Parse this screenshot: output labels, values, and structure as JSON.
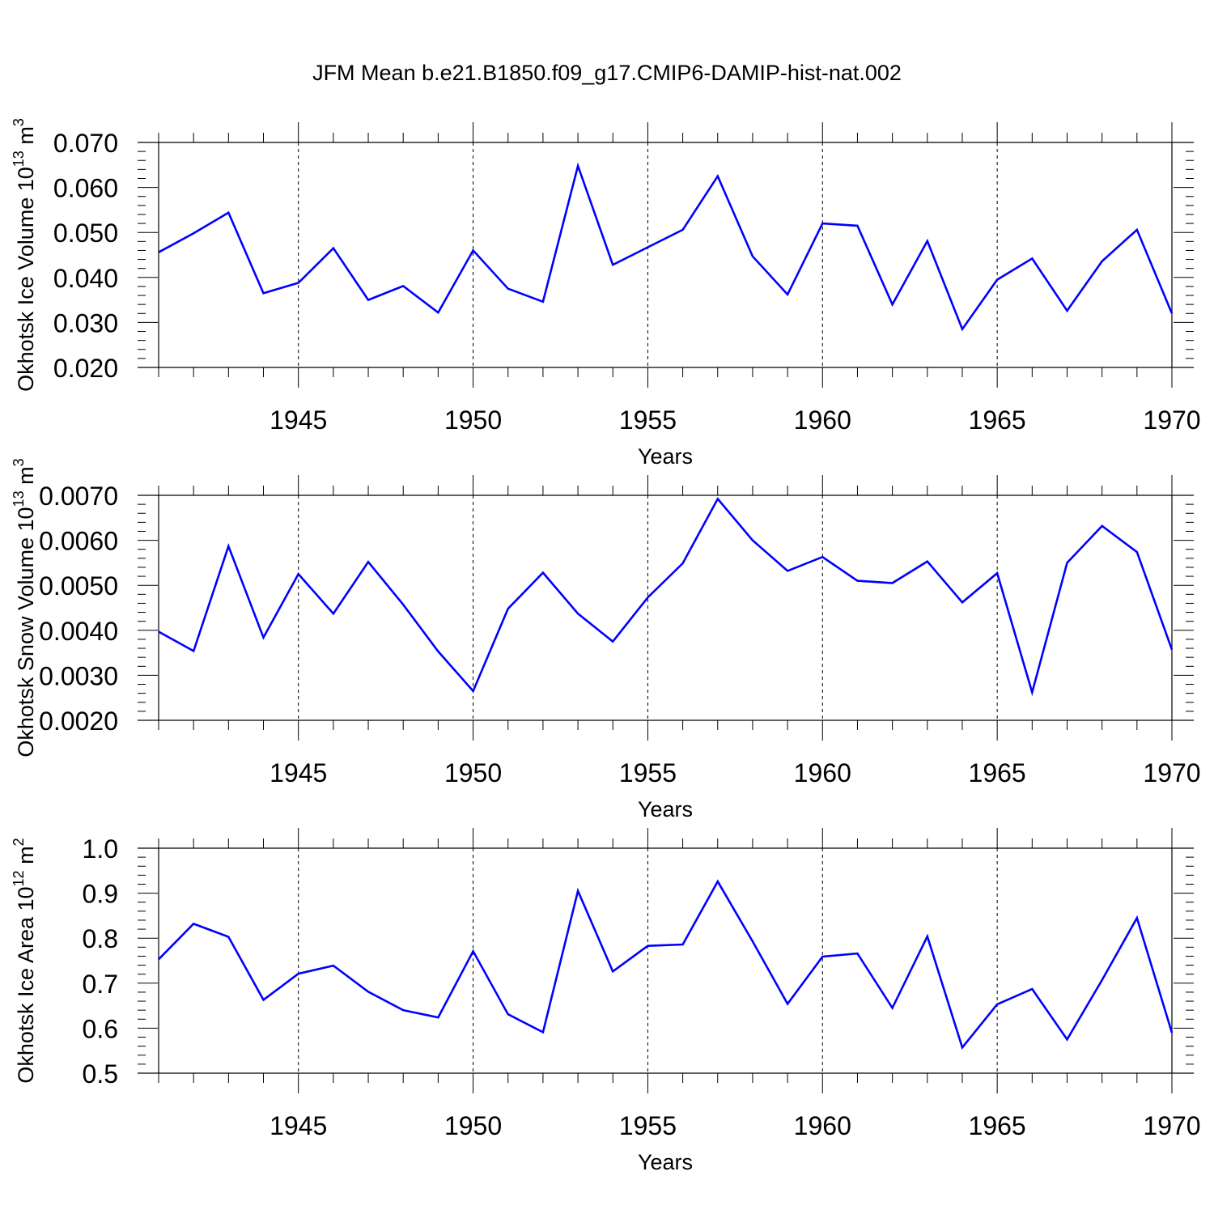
{
  "title": "JFM Mean b.e21.B1850.f09_g17.CMIP6-DAMIP-hist-nat.002",
  "line_color": "#0000ff",
  "chart_data": [
    {
      "type": "line",
      "ylabel_main": "Okhotsk Ice Volume 10",
      "ylabel_exp": "13",
      "ylabel_unit": "m",
      "ylabel_unit_exp": "3",
      "xlabel": "Years",
      "xlim": [
        1941,
        1970
      ],
      "ylim": [
        0.02,
        0.07
      ],
      "yticks": [
        "0.020",
        "0.030",
        "0.040",
        "0.050",
        "0.060",
        "0.070"
      ],
      "xticks": [
        "1945",
        "1950",
        "1955",
        "1960",
        "1965",
        "1970"
      ],
      "x": [
        1941,
        1942,
        1943,
        1944,
        1945,
        1946,
        1947,
        1948,
        1949,
        1950,
        1951,
        1952,
        1953,
        1954,
        1955,
        1956,
        1957,
        1958,
        1959,
        1960,
        1961,
        1962,
        1963,
        1964,
        1965,
        1966,
        1967,
        1968,
        1969,
        1970
      ],
      "values": [
        0.0456,
        0.0498,
        0.0544,
        0.0365,
        0.0388,
        0.0465,
        0.035,
        0.0381,
        0.0322,
        0.046,
        0.0375,
        0.0346,
        0.0648,
        0.0428,
        0.0467,
        0.0506,
        0.0625,
        0.0447,
        0.0362,
        0.052,
        0.0515,
        0.034,
        0.0481,
        0.0285,
        0.0395,
        0.0442,
        0.0326,
        0.0436,
        0.0506,
        0.032
      ]
    },
    {
      "type": "line",
      "ylabel_main": "Okhotsk Snow Volume 10",
      "ylabel_exp": "13",
      "ylabel_unit": "m",
      "ylabel_unit_exp": "3",
      "xlabel": "Years",
      "xlim": [
        1941,
        1970
      ],
      "ylim": [
        0.002,
        0.007
      ],
      "yticks": [
        "0.0020",
        "0.0030",
        "0.0040",
        "0.0050",
        "0.0060",
        "0.0070"
      ],
      "xticks": [
        "1945",
        "1950",
        "1955",
        "1960",
        "1965",
        "1970"
      ],
      "x": [
        1941,
        1942,
        1943,
        1944,
        1945,
        1946,
        1947,
        1948,
        1949,
        1950,
        1951,
        1952,
        1953,
        1954,
        1955,
        1956,
        1957,
        1958,
        1959,
        1960,
        1961,
        1962,
        1963,
        1964,
        1965,
        1966,
        1967,
        1968,
        1969,
        1970
      ],
      "values": [
        0.00397,
        0.00354,
        0.00587,
        0.00384,
        0.00525,
        0.00437,
        0.00552,
        0.00457,
        0.00353,
        0.00265,
        0.00448,
        0.00528,
        0.00437,
        0.00375,
        0.00473,
        0.00549,
        0.00692,
        0.006,
        0.00532,
        0.00563,
        0.0051,
        0.00505,
        0.00553,
        0.00462,
        0.00527,
        0.00262,
        0.0055,
        0.00632,
        0.00574,
        0.00357
      ]
    },
    {
      "type": "line",
      "ylabel_main": "Okhotsk Ice Area 10",
      "ylabel_exp": "12",
      "ylabel_unit": "m",
      "ylabel_unit_exp": "2",
      "xlabel": "Years",
      "xlim": [
        1941,
        1970
      ],
      "ylim": [
        0.5,
        1.0
      ],
      "yticks": [
        "0.5",
        "0.6",
        "0.7",
        "0.8",
        "0.9",
        "1.0"
      ],
      "xticks": [
        "1945",
        "1950",
        "1955",
        "1960",
        "1965",
        "1970"
      ],
      "x": [
        1941,
        1942,
        1943,
        1944,
        1945,
        1946,
        1947,
        1948,
        1949,
        1950,
        1951,
        1952,
        1953,
        1954,
        1955,
        1956,
        1957,
        1958,
        1959,
        1960,
        1961,
        1962,
        1963,
        1964,
        1965,
        1966,
        1967,
        1968,
        1969,
        1970
      ],
      "values": [
        0.753,
        0.832,
        0.803,
        0.663,
        0.721,
        0.739,
        0.681,
        0.64,
        0.624,
        0.771,
        0.631,
        0.591,
        0.905,
        0.726,
        0.783,
        0.786,
        0.926,
        0.793,
        0.654,
        0.759,
        0.766,
        0.645,
        0.804,
        0.557,
        0.653,
        0.687,
        0.575,
        0.707,
        0.845,
        0.59
      ]
    }
  ]
}
